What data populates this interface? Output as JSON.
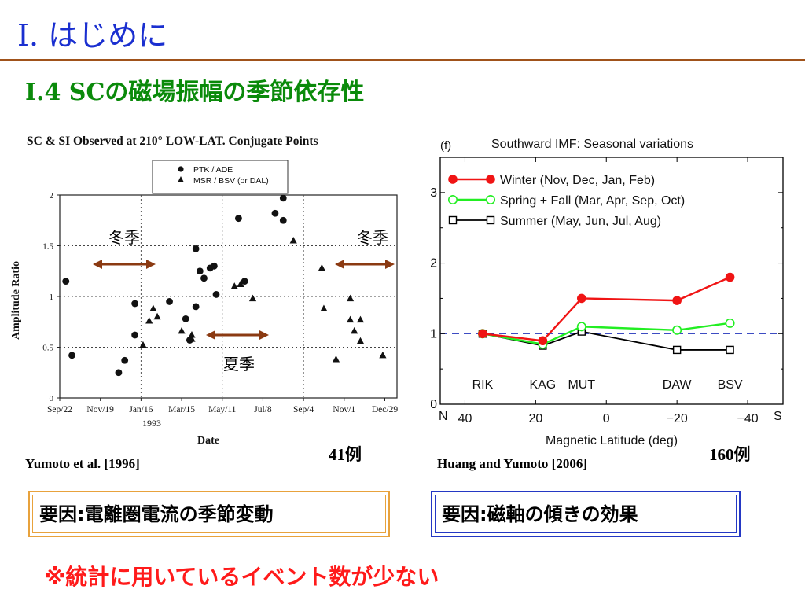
{
  "slide": {
    "title": "I. はじめに",
    "subtitle": "I.4 SCの磁場振幅の季節依存性"
  },
  "left_panel": {
    "citation": "Yumoto et al. [1996]",
    "count": "41例",
    "cause": "要因:電離圏電流の季節変動",
    "annotations": {
      "winter_left": "冬季",
      "winter_right": "冬季",
      "summer": "夏季"
    },
    "arrow_color": "#8b3a12"
  },
  "right_panel": {
    "citation": "Huang and Yumoto [2006]",
    "count": "160例",
    "cause": "要因:磁軸の傾きの効果"
  },
  "note": {
    "text": "※統計に用いているイベント数が少ない",
    "color": "#ff1a1a"
  },
  "chart_data": [
    {
      "type": "scatter",
      "title": "SC & SI Observed at 210° LOW-LAT. Conjugate Points",
      "xlabel": "Date",
      "ylabel": "Amplitude Ratio",
      "x_tick_labels": [
        "Sep/22",
        "Nov/19",
        "Jan/16",
        "Mar/15",
        "May/11",
        "Jul/8",
        "Sep/4",
        "Nov/1",
        "Dec/29"
      ],
      "x_year_label": "1993",
      "y_tick_labels": [
        "0",
        "0.5",
        "1",
        "1.5",
        "2"
      ],
      "xlim": [
        0,
        8.3
      ],
      "ylim": [
        0,
        2
      ],
      "grid": true,
      "legend_position": "top-center",
      "series": [
        {
          "name": "PTK / ADE",
          "marker": "circle",
          "points": [
            [
              0.15,
              1.15
            ],
            [
              0.3,
              0.42
            ],
            [
              1.45,
              0.25
            ],
            [
              1.6,
              0.37
            ],
            [
              1.85,
              0.62
            ],
            [
              1.85,
              0.93
            ],
            [
              2.7,
              0.95
            ],
            [
              3.1,
              0.78
            ],
            [
              3.2,
              0.57
            ],
            [
              3.35,
              0.9
            ],
            [
              3.35,
              1.47
            ],
            [
              3.45,
              1.25
            ],
            [
              3.55,
              1.18
            ],
            [
              3.7,
              1.28
            ],
            [
              3.8,
              1.3
            ],
            [
              3.85,
              1.02
            ],
            [
              4.4,
              1.77
            ],
            [
              4.55,
              1.15
            ],
            [
              5.3,
              1.82
            ],
            [
              5.5,
              1.75
            ],
            [
              5.5,
              1.97
            ]
          ]
        },
        {
          "name": "MSR / BSV (or DAL)",
          "marker": "triangle",
          "points": [
            [
              2.05,
              0.52
            ],
            [
              2.2,
              0.76
            ],
            [
              2.3,
              0.88
            ],
            [
              2.4,
              0.8
            ],
            [
              3.0,
              0.66
            ],
            [
              3.25,
              0.62
            ],
            [
              3.25,
              0.58
            ],
            [
              4.3,
              1.1
            ],
            [
              4.45,
              1.12
            ],
            [
              4.75,
              0.98
            ],
            [
              5.75,
              1.55
            ],
            [
              6.45,
              1.28
            ],
            [
              6.5,
              0.88
            ],
            [
              6.8,
              0.38
            ],
            [
              7.15,
              0.98
            ],
            [
              7.15,
              0.77
            ],
            [
              7.25,
              0.66
            ],
            [
              7.4,
              0.56
            ],
            [
              7.4,
              0.77
            ],
            [
              7.95,
              0.42
            ]
          ]
        }
      ]
    },
    {
      "type": "line",
      "panel_label": "(f)",
      "title": "Southward IMF: Seasonal variations",
      "xlabel": "Magnetic Latitude (deg)",
      "ylabel": "",
      "x": [
        35,
        18,
        7,
        -20,
        -35
      ],
      "station_labels": [
        "RIK",
        "KAG",
        "MUT",
        "DAW",
        "BSV"
      ],
      "x_tick_labels": [
        "40",
        "20",
        "0",
        "−20",
        "−40"
      ],
      "x_end_labels": {
        "left": "N",
        "right": "S"
      },
      "y_tick_labels": [
        "0",
        "1",
        "2",
        "3"
      ],
      "xlim": [
        47,
        -50
      ],
      "ylim": [
        0,
        3.5
      ],
      "grid": false,
      "reference_line": {
        "y": 1,
        "color": "#2233bb",
        "style": "dashed"
      },
      "legend_position": "top-left",
      "series": [
        {
          "name": "Winter (Nov, Dec, Jan, Feb)",
          "color": "#f01414",
          "marker": "filled-circle",
          "values": [
            1.0,
            0.9,
            1.5,
            1.47,
            1.8
          ]
        },
        {
          "name": "Spring + Fall (Mar, Apr, Sep, Oct)",
          "color": "#22ee22",
          "marker": "open-circle",
          "values": [
            1.0,
            0.85,
            1.1,
            1.05,
            1.15
          ]
        },
        {
          "name": "Summer (May, Jun, Jul, Aug)",
          "color": "#000000",
          "marker": "open-square",
          "values": [
            1.0,
            0.83,
            1.03,
            0.77,
            0.77
          ]
        }
      ]
    }
  ]
}
